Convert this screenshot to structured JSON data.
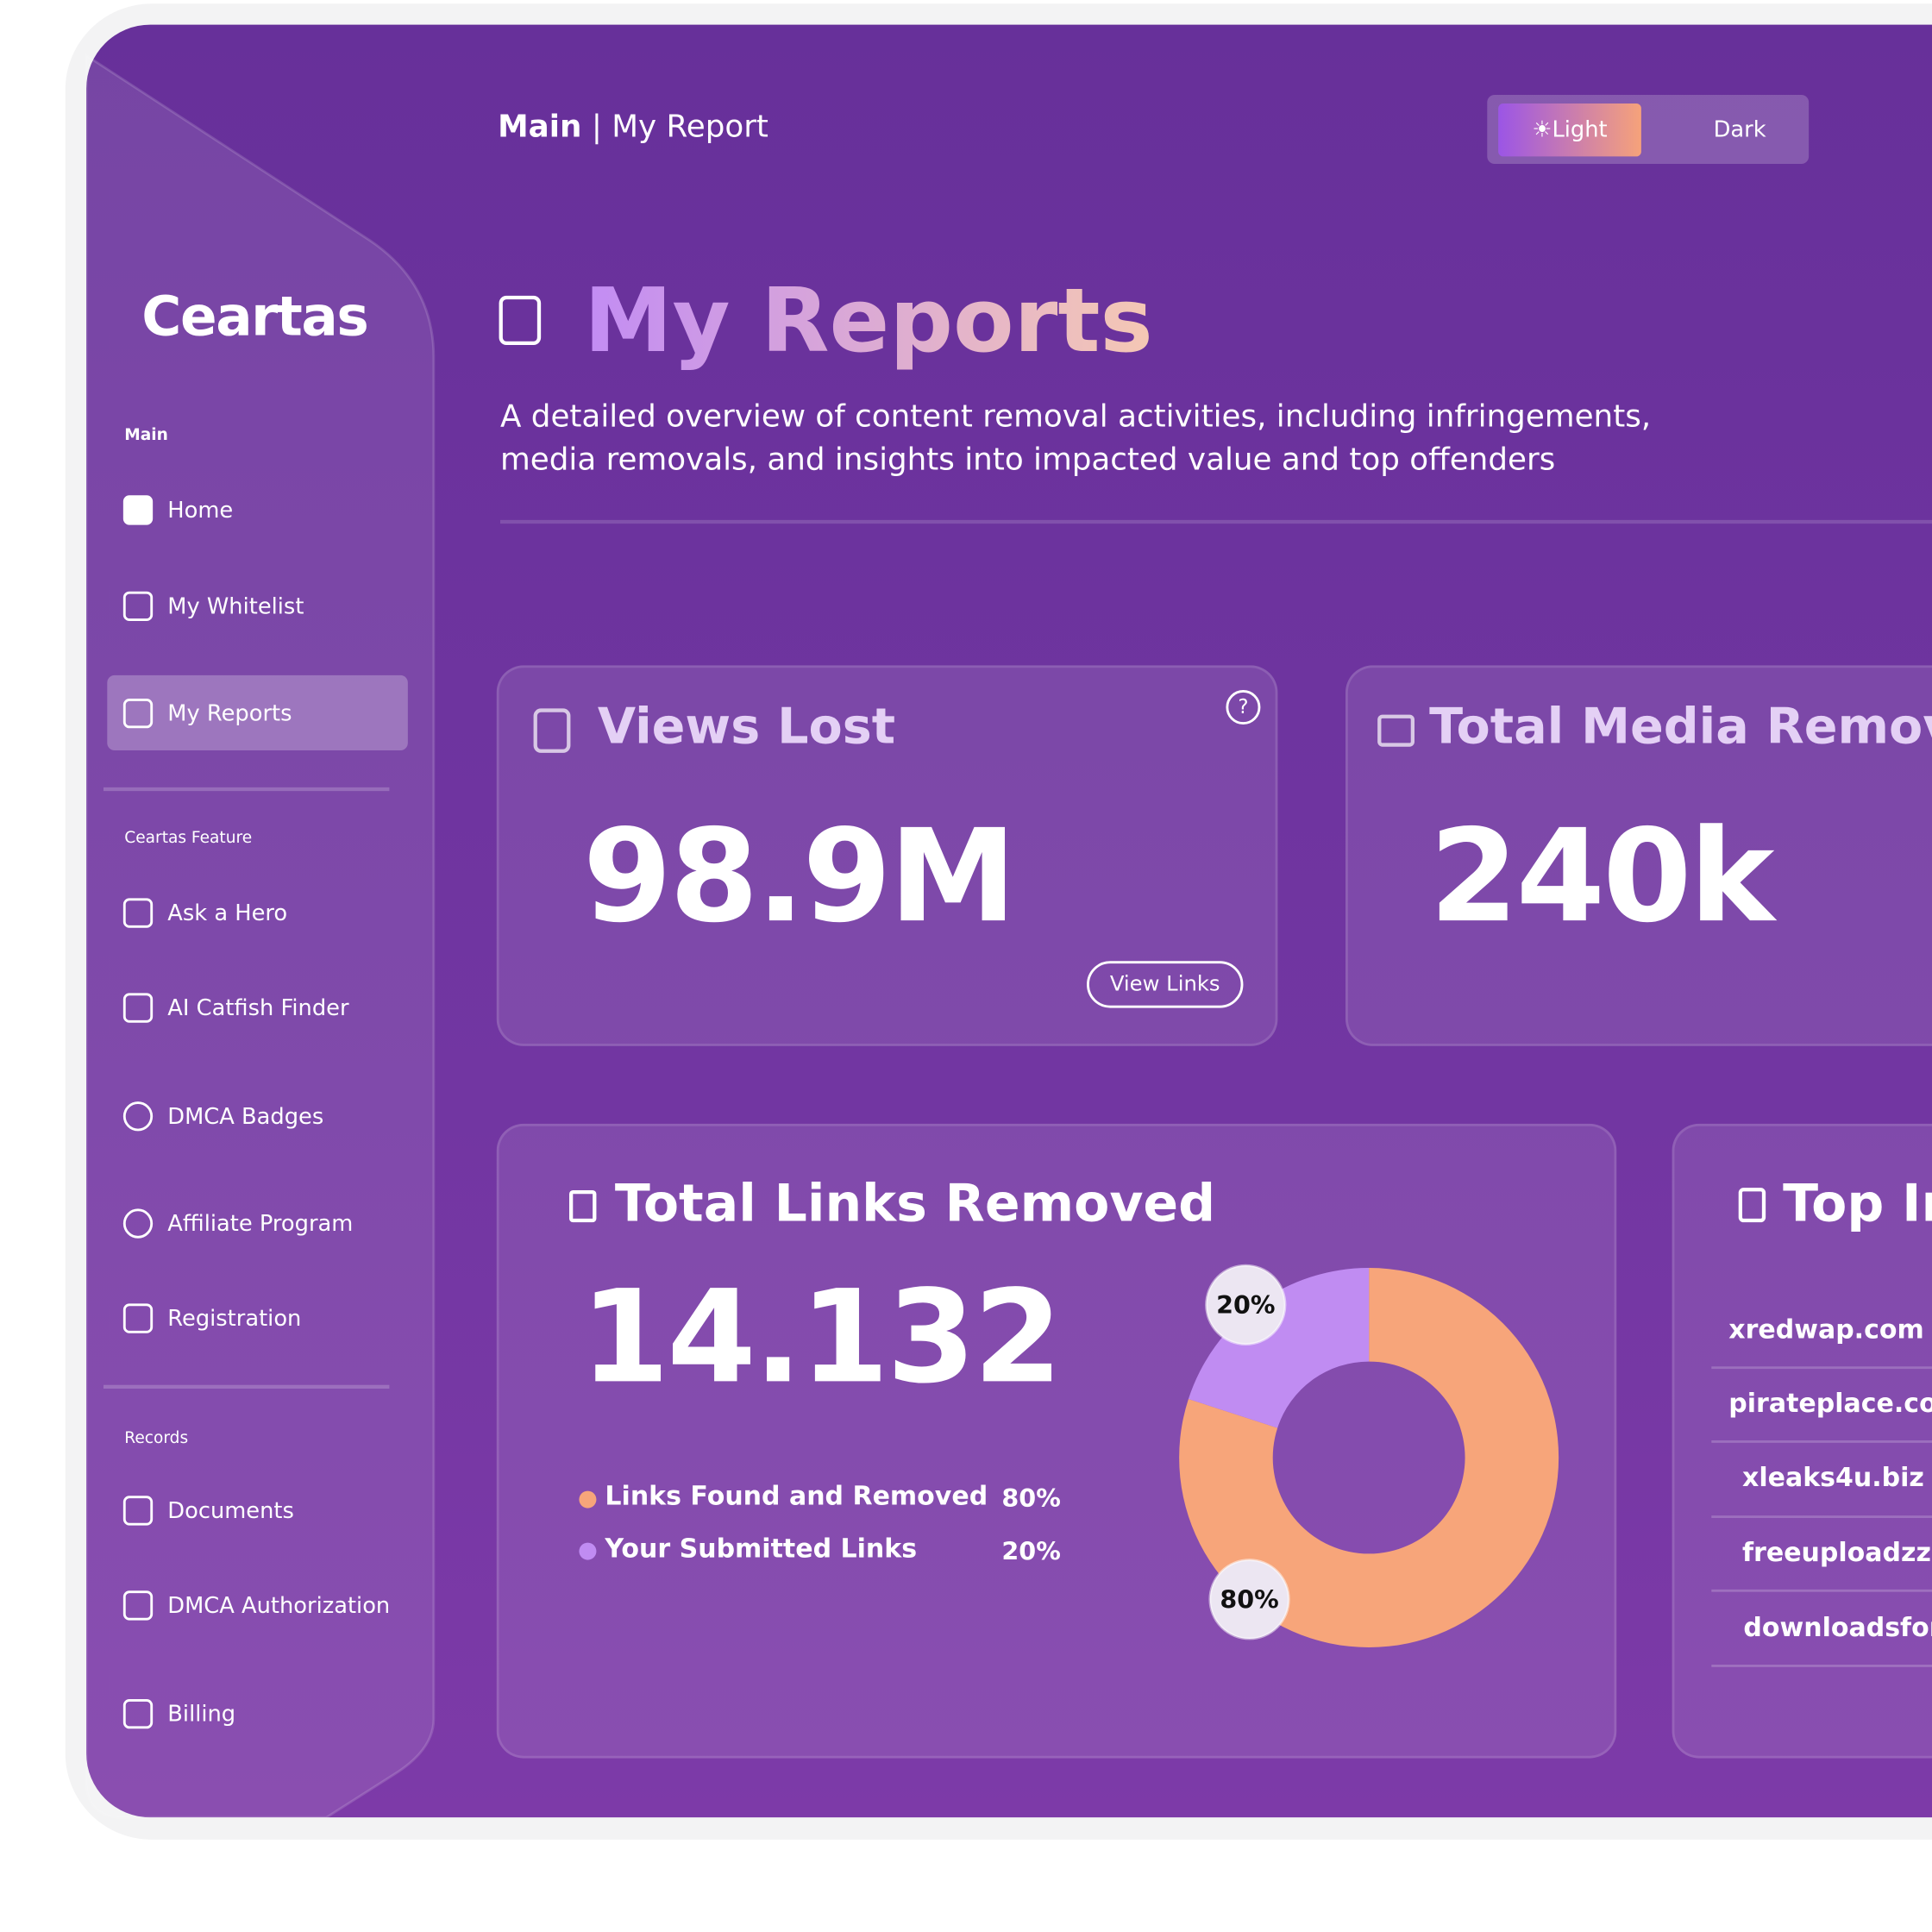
{
  "header": {
    "breadcrumb_main": "Main",
    "breadcrumb_page": "My Report",
    "theme_light": "Light",
    "theme_dark": "Dark"
  },
  "sidebar": {
    "logo": "Ceartas",
    "sections": [
      {
        "title": "Main",
        "items": [
          "Home",
          "My Whitelist",
          "My Reports"
        ]
      },
      {
        "title": "Ceartas Feature",
        "items": [
          "Ask a Hero",
          "AI Catfish Finder",
          "DMCA Badges",
          "Affiliate Program",
          "Registration"
        ]
      },
      {
        "title": "Records",
        "items": [
          "Documents",
          "DMCA Authorization",
          "Billing"
        ]
      }
    ]
  },
  "page": {
    "title": "My Reports",
    "description": "A detailed overview of content removal activities, including infringements, media removals, and insights into impacted value and top offenders"
  },
  "views_card": {
    "title": "Views Lost",
    "value": "98.9M",
    "button": "View Links"
  },
  "media_card": {
    "title": "Total Media Removed",
    "value": "240k"
  },
  "links_card": {
    "title": "Total Links Removed",
    "value": "14.132",
    "chart": {
      "type": "pie",
      "categories": [
        "Links Found and Removed",
        "Your Submitted Links"
      ],
      "values": [
        80,
        20
      ],
      "value_labels": [
        "80%",
        "20%"
      ],
      "colors": [
        "#f7a57a",
        "#c08cf2"
      ]
    }
  },
  "top_card": {
    "title": "Top Infringers",
    "domains": [
      "xredwap.com",
      "pirateplace.com",
      "xleaks4u.biz",
      "freeuploadzzz.",
      "downloadsfor"
    ]
  }
}
